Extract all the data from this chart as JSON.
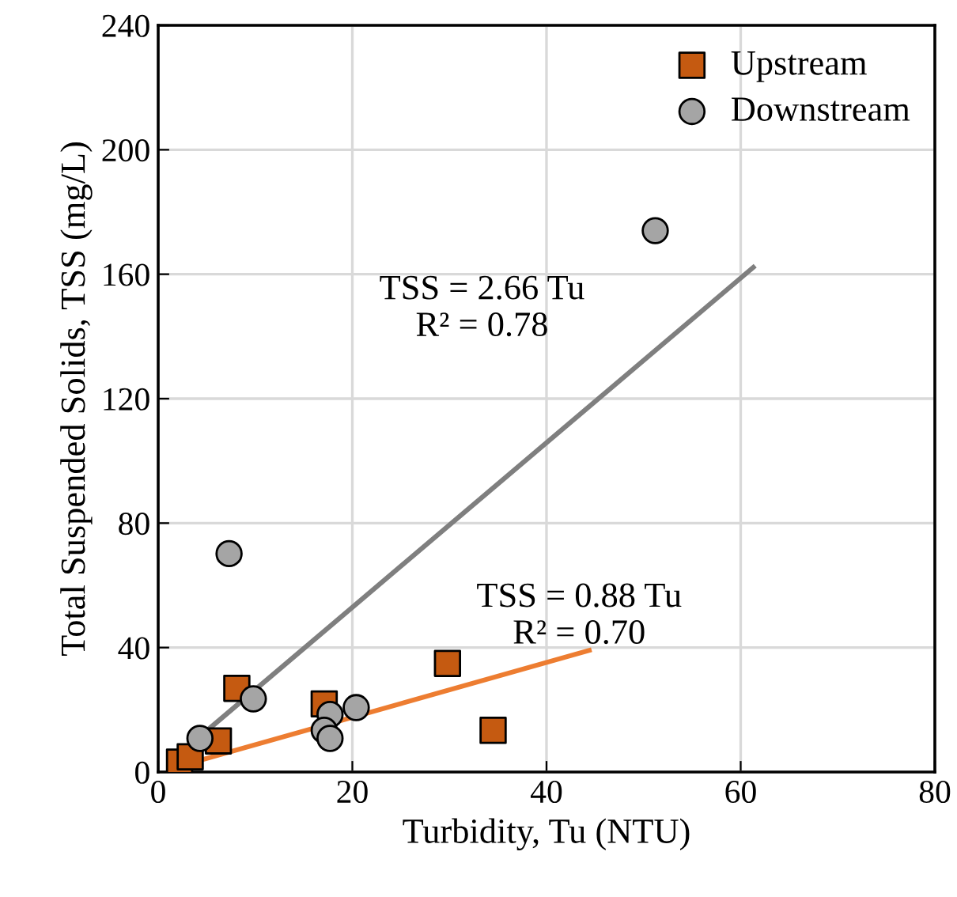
{
  "chart_data": {
    "type": "scatter",
    "xlabel": "Turbidity, Tu (NTU)",
    "ylabel": "Total Suspended Solids, TSS (mg/L)",
    "xlim": [
      0,
      80
    ],
    "xticks": [
      0,
      20,
      40,
      60,
      80
    ],
    "ylim": [
      0,
      240
    ],
    "yticks": [
      0,
      40,
      80,
      120,
      160,
      200,
      240
    ],
    "grid": true,
    "legend": "top right",
    "series": [
      {
        "name": "Upstream",
        "marker": "square",
        "color": "#c55a11",
        "x": [
          2.2,
          3.3,
          6.2,
          8.1,
          17.1,
          29.8,
          34.5
        ],
        "values": [
          3.2,
          4.9,
          10.0,
          26.9,
          21.9,
          34.9,
          13.4
        ]
      },
      {
        "name": "Downstream",
        "marker": "circle",
        "color": "#a5a5a5",
        "x": [
          7.3,
          4.3,
          9.8,
          17.7,
          17.1,
          17.7,
          20.4,
          51.2
        ],
        "values": [
          70.2,
          10.8,
          23.5,
          18.5,
          13.4,
          10.8,
          20.7,
          174
        ]
      },
      {
        "type": "line",
        "color": "#ed7d31",
        "x": [
          2.2,
          44.4
        ],
        "values": [
          1.9,
          39.1
        ]
      },
      {
        "type": "line",
        "color": "#7f7f7f",
        "x": [
          4.3,
          61.3
        ],
        "values": [
          11.4,
          162.2
        ]
      }
    ],
    "annotations": [
      "TSS = 2.66 Tu\nR² = 0.78",
      "TSS = 0.88 Tu\nR² = 0.70"
    ]
  }
}
